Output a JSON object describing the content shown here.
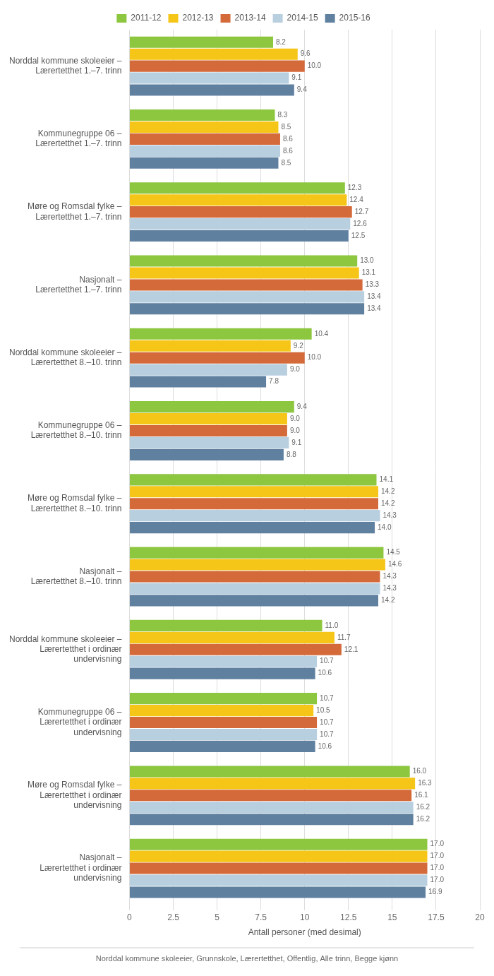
{
  "chart_data": {
    "type": "bar",
    "orientation": "horizontal",
    "x_label": "Antall personer (med desimal)",
    "annotations": [
      "Norddal kommune skoleeier, Grunnskole, Lærertetthet, Offentlig, Alle trinn, Begge kjønn"
    ],
    "categories": [
      "Norddal kommune skoleeier –\nLærertetthet 1.–7. trinn",
      "Kommunegruppe 06 –\nLærertetthet 1.–7. trinn",
      "Møre og Romsdal fylke –\nLærertetthet 1.–7. trinn",
      "Nasjonalt –\nLærertetthet 1.–7. trinn",
      "Norddal kommune skoleeier –\nLærertetthet 8.–10. trinn",
      "Kommunegruppe 06 –\nLærertetthet 8.–10. trinn",
      "Møre og Romsdal fylke –\nLærertetthet 8.–10. trinn",
      "Nasjonalt –\nLærertetthet 8.–10. trinn",
      "Norddal kommune skoleeier –\nLærertetthet i ordinær\nundervisning",
      "Kommunegruppe 06 –\nLærertetthet i ordinær\nundervisning",
      "Møre og Romsdal fylke –\nLærertetthet i ordinær\nundervisning",
      "Nasjonalt –\nLærertetthet i ordinær\nundervisning"
    ],
    "series": [
      {
        "name": "2011-12",
        "color": "#8dc63f",
        "values": [
          8.2,
          8.3,
          12.3,
          13.0,
          10.4,
          9.4,
          14.1,
          14.5,
          11.0,
          10.7,
          16.0,
          17.0
        ],
        "value_labels": [
          "8.2",
          "8.3",
          "12.3",
          "13.0",
          "10.4",
          "9.4",
          "14.1",
          "14.5",
          "11.0",
          "10.7",
          "16.0",
          "17.0"
        ]
      },
      {
        "name": "2012-13",
        "color": "#f5c518",
        "values": [
          9.6,
          8.5,
          12.4,
          13.1,
          9.2,
          9.0,
          14.2,
          14.6,
          11.7,
          10.5,
          16.3,
          17.0
        ],
        "value_labels": [
          "9.6",
          "8.5",
          "12.4",
          "13.1",
          "9.2",
          "9.0",
          "14.2",
          "14.6",
          "11.7",
          "10.5",
          "16.3",
          "17.0"
        ]
      },
      {
        "name": "2013-14",
        "color": "#d4693a",
        "values": [
          10.0,
          8.6,
          12.7,
          13.3,
          10.0,
          9.0,
          14.2,
          14.3,
          12.1,
          10.7,
          16.1,
          17.0
        ],
        "value_labels": [
          "10.0",
          "8.6",
          "12.7",
          "13.3",
          "10.0",
          "9.0",
          "14.2",
          "14.3",
          "12.1",
          "10.7",
          "16.1",
          "17.0"
        ]
      },
      {
        "name": "2014-15",
        "color": "#b8cfe0",
        "values": [
          9.1,
          8.6,
          12.6,
          13.4,
          9.0,
          9.1,
          14.3,
          14.3,
          10.7,
          10.7,
          16.2,
          17.0
        ],
        "value_labels": [
          "9.1",
          "8.6",
          "12.6",
          "13.4",
          "9.0",
          "9.1",
          "14.3",
          "14.3",
          "10.7",
          "10.7",
          "16.2",
          "17.0"
        ]
      },
      {
        "name": "2015-16",
        "color": "#6080a0",
        "values": [
          9.4,
          8.5,
          12.5,
          13.4,
          7.8,
          8.8,
          14.0,
          14.2,
          10.6,
          10.6,
          16.2,
          16.9
        ],
        "value_labels": [
          "9.4",
          "8.5",
          "12.5",
          "13.4",
          "7.8",
          "8.8",
          "14.0",
          "14.2",
          "10.6",
          "10.6",
          "16.2",
          "16.9"
        ]
      }
    ],
    "xlim": [
      0,
      20
    ],
    "xticks": [
      0,
      2.5,
      5,
      7.5,
      10,
      12.5,
      15,
      17.5,
      20
    ],
    "grid": true,
    "legend": "top",
    "data_labels": true
  }
}
